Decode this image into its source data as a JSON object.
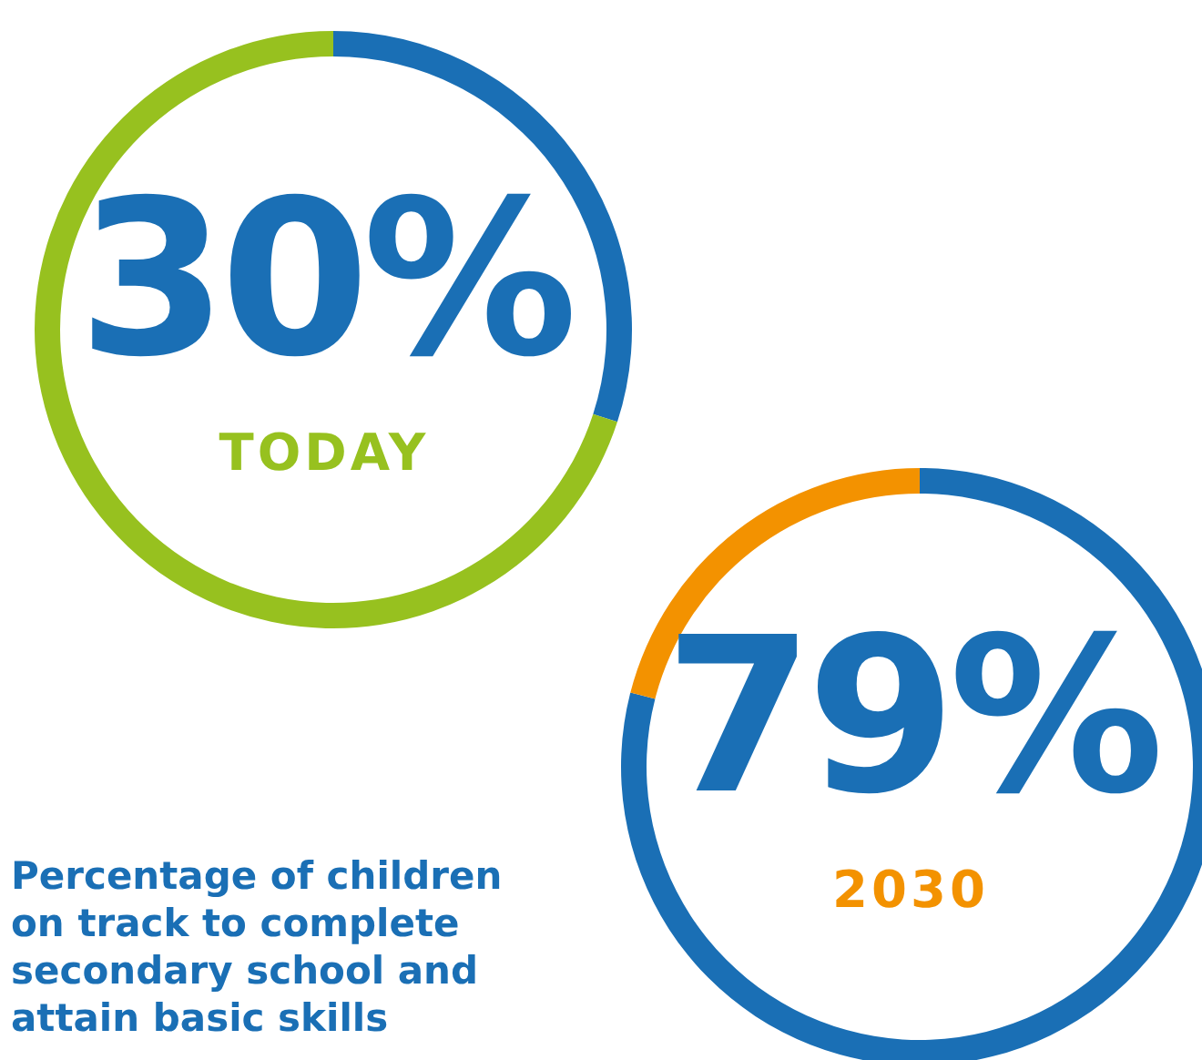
{
  "chart_data": [
    {
      "type": "donut",
      "categories": [
        null,
        null
      ],
      "values": [
        30,
        70
      ],
      "colors": [
        "#1a6fb5",
        "#97c11f"
      ],
      "value_labels": [
        "30%",
        null
      ],
      "annotations": [
        "TODAY"
      ]
    },
    {
      "type": "donut",
      "categories": [
        null,
        null
      ],
      "values": [
        79,
        21
      ],
      "colors": [
        "#1a6fb5",
        "#f39200"
      ],
      "value_labels": [
        "79%",
        null
      ],
      "annotations": [
        "2030",
        "Percentage of children on track to complete secondary school and attain basic skills"
      ]
    }
  ]
}
